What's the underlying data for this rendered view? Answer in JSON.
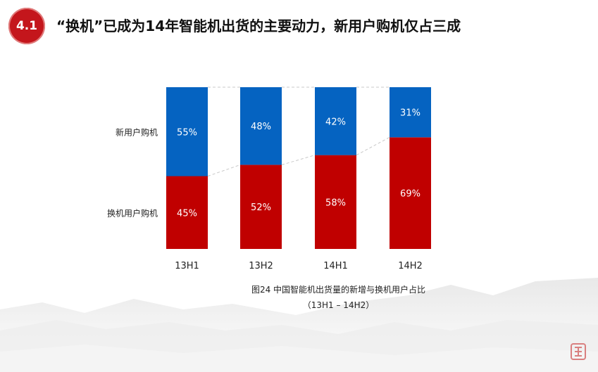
{
  "header": {
    "section_number": "4.1",
    "title": "“换机”已成为14年智能机出货的主要动力，新用户购机仅占三成"
  },
  "chart_data": {
    "type": "bar",
    "stacked": true,
    "percent": true,
    "categories": [
      "13H1",
      "13H2",
      "14H1",
      "14H2"
    ],
    "series": [
      {
        "name": "换机用户购机",
        "values": [
          45,
          52,
          58,
          69
        ],
        "color": "#c00000"
      },
      {
        "name": "新用户购机",
        "values": [
          55,
          48,
          42,
          31
        ],
        "color": "#0563c1"
      }
    ],
    "value_labels": [
      [
        "45%",
        "52%",
        "58%",
        "69%"
      ],
      [
        "55%",
        "48%",
        "42%",
        "31%"
      ]
    ],
    "ylim": [
      0,
      100
    ],
    "legend": "left",
    "grid": false
  },
  "caption": {
    "line1": "图24 中国智能机出货量的新增与换机用户占比",
    "line2": "（13H1 – 14H2）"
  }
}
